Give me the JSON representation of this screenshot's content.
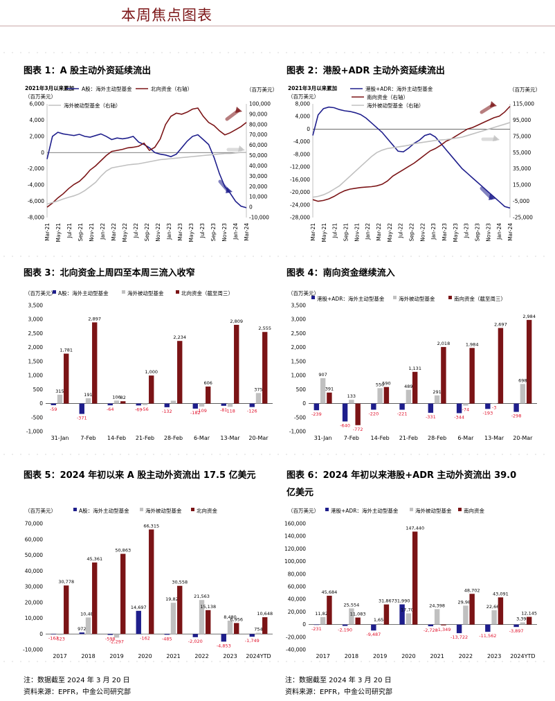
{
  "header": {
    "title": "本周焦点图表"
  },
  "notes": {
    "note": "注：数据截至 2024 年 3 月 20 日",
    "source": "资料来源：EPFR，中金公司研究部"
  },
  "colors": {
    "navy": "#1e1e8c",
    "gray": "#c0c0c0",
    "red": "#7b1416",
    "neg": "#e0102a"
  },
  "chart_data": [
    {
      "id": "chart1",
      "type": "line",
      "title": "图表 1：A 股主动外资延续流出",
      "note": "2021年3月以来累加",
      "unit_left": "（百万美元）",
      "unit_right": "（百万美元）",
      "legend": [
        "A股：海外主动型基金",
        "北向资金（右轴）",
        "海外被动型基金（右轴）"
      ],
      "x_ticks": [
        "Mar-21",
        "May-21",
        "Jul-21",
        "Sep-21",
        "Nov-21",
        "Jan-22",
        "Mar-22",
        "May-22",
        "Jul-22",
        "Sep-22",
        "Nov-22",
        "Jan-23",
        "Mar-23",
        "May-23",
        "Jul-23",
        "Sep-23",
        "Nov-23",
        "Jan-24",
        "Mar-24"
      ],
      "ylim_left": [
        -8000,
        6000
      ],
      "yticks_left": [
        "6,000",
        "4,000",
        "2,000",
        "0",
        "-2,000",
        "-4,000",
        "-6,000",
        "-8,000"
      ],
      "ylim_right": [
        -10000,
        100000
      ],
      "yticks_right": [
        "100,000",
        "90,000",
        "80,000",
        "70,000",
        "60,000",
        "50,000",
        "40,000",
        "30,000",
        "20,000",
        "10,000",
        "0",
        "-10,000"
      ],
      "series": [
        {
          "name": "A股：海外主动型基金",
          "axis": "left",
          "values": [
            -800,
            2000,
            2500,
            2300,
            2200,
            2100,
            2250,
            2000,
            1900,
            2100,
            2300,
            2000,
            1600,
            1800,
            1700,
            1800,
            2000,
            1300,
            1000,
            600,
            0,
            -200,
            -300,
            -500,
            -200,
            600,
            1400,
            2000,
            2200,
            1600,
            1000,
            -600,
            -2600,
            -4200,
            -5000,
            -6000,
            -6600,
            -6800
          ]
        },
        {
          "name": "北向资金（右轴）",
          "axis": "right",
          "values": [
            0,
            4000,
            9000,
            13000,
            18000,
            22000,
            25000,
            30000,
            36000,
            40000,
            45000,
            50000,
            54000,
            55000,
            56000,
            57500,
            58000,
            59000,
            62000,
            55000,
            58000,
            66000,
            80000,
            88000,
            91000,
            90000,
            92000,
            95000,
            96000,
            88000,
            82000,
            79000,
            74000,
            70000,
            72000,
            75000,
            78000,
            82000
          ]
        },
        {
          "name": "海外被动型基金（右轴）",
          "axis": "right",
          "values": [
            3000,
            4500,
            6000,
            8000,
            9500,
            11000,
            13000,
            16000,
            20000,
            24000,
            30000,
            35000,
            38000,
            39000,
            40000,
            41000,
            41500,
            42000,
            43000,
            44000,
            45000,
            46000,
            46500,
            47000,
            47500,
            48000,
            48500,
            49000,
            49500,
            50000,
            50500,
            51000,
            51500,
            52000,
            52000,
            52500,
            53000,
            53000
          ]
        }
      ]
    },
    {
      "id": "chart2",
      "type": "line",
      "title": "图表 2：港股+ADR 主动外资延续流出",
      "note": "2021年3月以来累加",
      "unit_left": "（百万美元）",
      "unit_right": "（百万美元）",
      "legend": [
        "港股+ADR：海外主动型基金",
        "南向资金（右轴）",
        "海外被动型基金（右轴）"
      ],
      "x_ticks": [
        "Mar-21",
        "May-21",
        "Jul-21",
        "Sep-21",
        "Nov-21",
        "Jan-22",
        "Mar-22",
        "May-22",
        "Jul-22",
        "Sep-22",
        "Nov-22",
        "Jan-23",
        "Mar-23",
        "May-23",
        "Jul-23",
        "Sep-23",
        "Nov-23",
        "Jan-24",
        "Mar-24"
      ],
      "ylim_left": [
        -28000,
        8000
      ],
      "yticks_left": [
        "8,000",
        "4,000",
        "0",
        "-4,000",
        "-8,000",
        "-12,000",
        "-16,000",
        "-20,000",
        "-24,000",
        "-28,000"
      ],
      "ylim_right": [
        -25000,
        115000
      ],
      "yticks_right": [
        "115,000",
        "95,000",
        "75,000",
        "55,000",
        "35,000",
        "15,000",
        "-5,000",
        "-25,000"
      ],
      "series": [
        {
          "name": "港股+ADR：海外主动型基金",
          "axis": "left",
          "values": [
            -2000,
            4500,
            6500,
            7000,
            6800,
            6200,
            5800,
            5600,
            5200,
            4600,
            3500,
            2000,
            500,
            -1000,
            -3000,
            -5000,
            -7000,
            -7200,
            -6000,
            -4500,
            -3500,
            -2000,
            -1500,
            -2500,
            -4500,
            -6500,
            -8500,
            -10500,
            -12500,
            -14000,
            -15500,
            -17000,
            -18500,
            -20000,
            -21500,
            -23000,
            -24500,
            -25000
          ]
        },
        {
          "name": "南向资金（右轴）",
          "axis": "right",
          "values": [
            -3000,
            -5000,
            -4000,
            -2000,
            1000,
            5000,
            8000,
            10000,
            11000,
            12000,
            12500,
            13000,
            14000,
            16000,
            20000,
            26000,
            30000,
            34000,
            38000,
            42000,
            47000,
            52000,
            57000,
            60000,
            64000,
            69000,
            72000,
            76000,
            80000,
            84000,
            86000,
            89000,
            92000,
            95000,
            98000,
            100000,
            105000,
            112000
          ]
        },
        {
          "name": "海外被动型基金（右轴）",
          "axis": "right",
          "values": [
            0,
            1000,
            3000,
            6000,
            10000,
            14000,
            20000,
            26000,
            32000,
            38000,
            44000,
            50000,
            55000,
            58000,
            60000,
            61000,
            62000,
            63000,
            64000,
            66000,
            67000,
            68000,
            69000,
            70000,
            70500,
            71000,
            72000,
            73000,
            74000,
            76000,
            78000,
            80000,
            82000,
            84000,
            86000,
            88000,
            90000,
            92000
          ]
        }
      ]
    },
    {
      "id": "chart3",
      "type": "bar",
      "title": "图表 3：北向资金上周四至本周三流入收窄",
      "unit_left": "（百万美元）",
      "legend": [
        "A股：海外主动型基金",
        "海外被动型基金",
        "北向资金（截至周三）"
      ],
      "categories": [
        "31-Jan",
        "7-Feb",
        "14-Feb",
        "21-Feb",
        "28-Feb",
        "6-Mar",
        "13-Mar",
        "20-Mar"
      ],
      "ylim": [
        -1000,
        3500
      ],
      "yticks": [
        "3,500",
        "3,000",
        "2,500",
        "2,000",
        "1,500",
        "1,000",
        "500",
        "0",
        "-500",
        "-1,000"
      ],
      "series": [
        {
          "name": "A股：海外主动型基金",
          "values": [
            -59,
            -371,
            -64,
            -69,
            -132,
            -182,
            -81,
            -126
          ],
          "labels": [
            "-59",
            "-371",
            "-64",
            "-69",
            "-132",
            "-182",
            "-81",
            "-126"
          ]
        },
        {
          "name": "海外被动型基金",
          "values": [
            315,
            191,
            106,
            -56,
            100,
            -109,
            -118,
            375
          ],
          "labels": [
            "315",
            "191",
            "106",
            "-56",
            "",
            "-109",
            "-118",
            "375"
          ]
        },
        {
          "name": "北向资金（截至周三）",
          "values": [
            1781,
            2897,
            82,
            1000,
            2234,
            606,
            2809,
            2555
          ],
          "labels": [
            "1,781",
            "2,897",
            "82",
            "1,000",
            "2,234",
            "606",
            "2,809",
            "2,555"
          ]
        }
      ]
    },
    {
      "id": "chart4",
      "type": "bar",
      "title": "图表 4：南向资金继续流入",
      "unit_left": "（百万美元）",
      "legend": [
        "港股+ADR：海外主动型基金",
        "海外被动型基金",
        "南向资金（截至周三）"
      ],
      "categories": [
        "31-Jan",
        "7-Feb",
        "14-Feb",
        "21-Feb",
        "28-Feb",
        "6-Mar",
        "13-Mar",
        "20-Mar"
      ],
      "ylim": [
        -1000,
        3500
      ],
      "yticks": [
        "3,500",
        "3,000",
        "2,500",
        "2,000",
        "1,500",
        "1,000",
        "500",
        "0",
        "-500",
        "-1,000"
      ],
      "series": [
        {
          "name": "港股+ADR：海外主动型基金",
          "values": [
            -239,
            -640,
            -220,
            -221,
            -331,
            -344,
            -193,
            -298
          ],
          "labels": [
            "-239",
            "-640",
            "-220",
            "-221",
            "-331",
            "-344",
            "-193",
            "-298"
          ]
        },
        {
          "name": "海外被动型基金",
          "values": [
            907,
            133,
            550,
            489,
            291,
            -74,
            -3,
            698
          ],
          "labels": [
            "907",
            "133",
            "550",
            "489",
            "291",
            "-74",
            "-3",
            "698"
          ]
        },
        {
          "name": "南向资金（截至周三）",
          "values": [
            391,
            -772,
            590,
            1131,
            2018,
            1984,
            2697,
            2984
          ],
          "labels": [
            "391",
            "-772",
            "590",
            "1,131",
            "2,018",
            "1,984",
            "2,697",
            "2,984"
          ]
        }
      ]
    },
    {
      "id": "chart5",
      "type": "bar",
      "title": "图表 5：2024 年初以来 A 股主动外资流出 17.5 亿美元",
      "unit_left": "（百万美元）",
      "legend": [
        "A股：海外主动型基金",
        "海外被动型基金",
        "北向资金"
      ],
      "categories": [
        "2017",
        "2018",
        "2019",
        "2020",
        "2021",
        "2022",
        "2023",
        "2024YTD"
      ],
      "ylim": [
        -10000,
        70000
      ],
      "yticks": [
        "70,000",
        "60,000",
        "50,000",
        "40,000",
        "30,000",
        "20,000",
        "10,000",
        "0",
        "-10,000"
      ],
      "series": [
        {
          "name": "A股：海外主动型基金",
          "values": [
            -167,
            972,
            -598,
            14697,
            -485,
            -2020,
            -4853,
            -1749
          ],
          "labels": [
            "-167",
            "972",
            "-598",
            "14,697",
            "-485",
            "-2,020",
            "-4,853",
            "-1,749"
          ]
        },
        {
          "name": "海外被动型基金",
          "values": [
            -623,
            10483,
            -2297,
            -162,
            19820,
            21563,
            8480,
            754
          ],
          "labels": [
            "-623",
            "10,483",
            "-2,297",
            "-162",
            "19,820",
            "21,563",
            "8,480",
            "754"
          ]
        },
        {
          "name": "北向资金",
          "values": [
            30778,
            45361,
            50863,
            66315,
            30558,
            15138,
            6956,
            10648
          ],
          "labels": [
            "30,778",
            "45,361",
            "50,863",
            "66,315",
            "30,558",
            "15,138",
            "6,956",
            "10,648"
          ]
        }
      ]
    },
    {
      "id": "chart6",
      "type": "bar",
      "title": "图表 6：2024 年初以来港股+ADR 主动外资流出 39.0 亿美元",
      "unit_left": "（百万美元）",
      "legend": [
        "港股+ADR：海外主动型基金",
        "海外被动型基金",
        "南向资金"
      ],
      "categories": [
        "2017",
        "2018",
        "2019",
        "2020",
        "2021",
        "2022",
        "2023",
        "2024YTD"
      ],
      "ylim": [
        -40000,
        160000
      ],
      "yticks": [
        "160,000",
        "140,000",
        "120,000",
        "100,000",
        "80,000",
        "60,000",
        "40,000",
        "20,000",
        "0",
        "-20,000",
        "-40,000"
      ],
      "series": [
        {
          "name": "港股+ADR：海外主动型基金",
          "values": [
            -231,
            -2190,
            -9487,
            31990,
            -2728,
            -13722,
            -11562,
            -3897
          ],
          "labels": [
            "-231",
            "-2,190",
            "-9,487",
            "31,990",
            "-2,728",
            "-13,722",
            "-11,562",
            "-3,897"
          ]
        },
        {
          "name": "海外被动型基金",
          "values": [
            11829,
            25554,
            1656,
            17705,
            24398,
            29987,
            22669,
            3390
          ],
          "labels": [
            "11,829",
            "25,554",
            "1,656",
            "17,705",
            "24,398",
            "29,987",
            "22,669",
            "3,390"
          ]
        },
        {
          "name": "南向资金",
          "values": [
            45684,
            11083,
            31867,
            147440,
            -1349,
            48702,
            43091,
            12145
          ],
          "labels": [
            "45,684",
            "11,083",
            "31,867",
            "147,440",
            "-1,349",
            "48,702",
            "43,091",
            "12,145"
          ]
        }
      ]
    }
  ]
}
